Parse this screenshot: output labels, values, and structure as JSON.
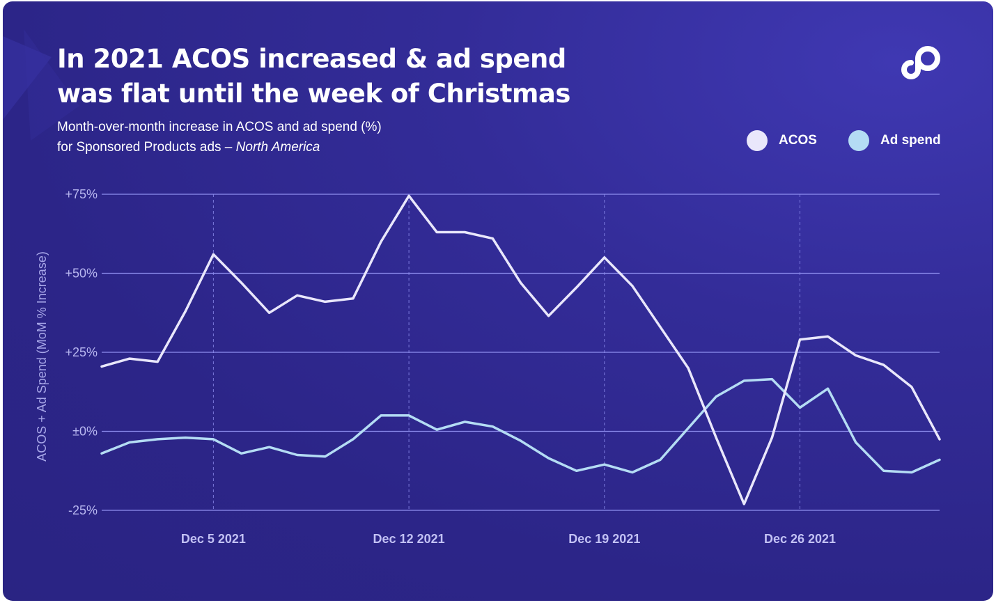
{
  "title_lines": [
    "In 2021 ACOS increased & ad spend",
    "was flat until the week of Christmas"
  ],
  "subtitle_line1": "Month-over-month increase in ACOS and ad spend (%)",
  "subtitle_line2_prefix": "for Sponsored Products ads – ",
  "subtitle_line2_region": "North America",
  "logo_icon": "brand-logo-icon",
  "colors": {
    "background": "#2c2588",
    "acos": "#e9e7fb",
    "ad_spend": "#b4dcf4",
    "grid": "#8f8ff0",
    "text": "#ffffff"
  },
  "chart_data": {
    "type": "line",
    "ylabel": "ACOS + Ad Spend (MoM % Increase)",
    "xlabel": "",
    "ylim": [
      -25,
      75
    ],
    "yticks": [
      75,
      50,
      25,
      0,
      -25
    ],
    "ytick_labels": [
      "+75%",
      "+50%",
      "+25%",
      "±0%",
      "-25%"
    ],
    "xtick_labels": [
      "Dec 5 2021",
      "Dec 12 2021",
      "Dec 19 2021",
      "Dec 26 2021"
    ],
    "xtick_positions": [
      4,
      11,
      18,
      25
    ],
    "x": [
      "Dec 1",
      "Dec 2",
      "Dec 3",
      "Dec 4",
      "Dec 5",
      "Dec 6",
      "Dec 7",
      "Dec 8",
      "Dec 9",
      "Dec 10",
      "Dec 11",
      "Dec 12",
      "Dec 13",
      "Dec 14",
      "Dec 15",
      "Dec 16",
      "Dec 17",
      "Dec 18",
      "Dec 19",
      "Dec 20",
      "Dec 21",
      "Dec 22",
      "Dec 23",
      "Dec 24",
      "Dec 25",
      "Dec 26",
      "Dec 27",
      "Dec 28",
      "Dec 29",
      "Dec 30",
      "Dec 31"
    ],
    "grid": true,
    "legend_position": "top-right",
    "series": [
      {
        "name": "ACOS",
        "values": [
          20.5,
          23,
          22,
          38,
          56,
          47,
          37.5,
          43,
          41,
          42,
          60,
          74.5,
          63,
          63,
          61,
          47,
          36.5,
          45.5,
          55,
          46,
          33,
          20,
          -2,
          -23,
          -2,
          29,
          30,
          24,
          21,
          14,
          -2.5
        ]
      },
      {
        "name": "Ad spend",
        "values": [
          -7,
          -3.5,
          -2.5,
          -2,
          -2.5,
          -7,
          -5,
          -7.5,
          -8,
          -2.5,
          5,
          5,
          0.5,
          3,
          1.5,
          -3,
          -8.5,
          -12.5,
          -10.5,
          -13,
          -9,
          1,
          11,
          16,
          16.5,
          7.5,
          13.5,
          -3.5,
          -12.5,
          -13,
          -9
        ]
      }
    ]
  }
}
